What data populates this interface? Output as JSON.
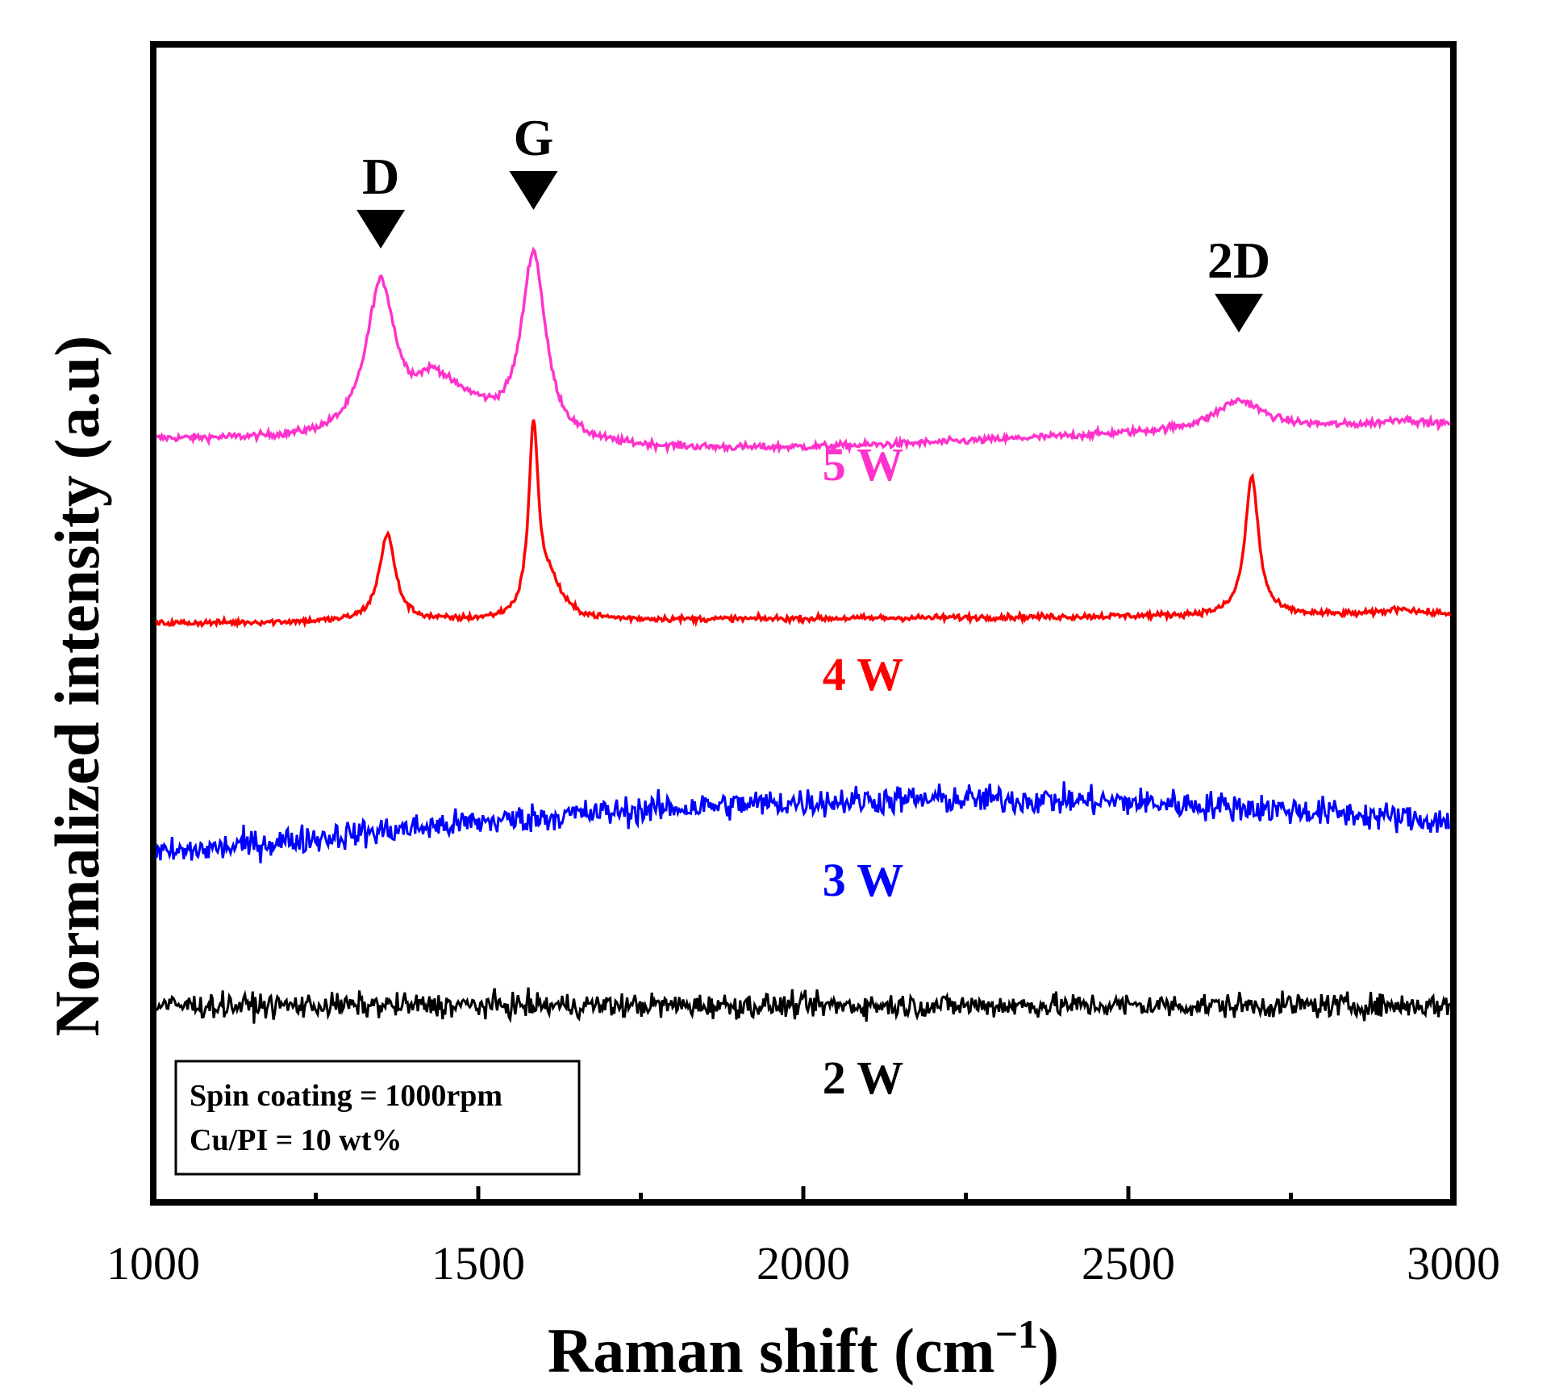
{
  "chart_data": {
    "type": "line",
    "title": "",
    "xlabel": "Raman shift (cm",
    "xlabel_sup": "−1",
    "xlabel_close": ")",
    "ylabel": "Normalized intensity (a.u)",
    "xlim": [
      1000,
      3000
    ],
    "ylim": [
      0,
      10
    ],
    "x_ticks": [
      1000,
      1500,
      2000,
      2500,
      3000
    ],
    "x_minor_ticks": [
      1250,
      1750,
      2250,
      2750
    ],
    "grid": false,
    "y_tick_labels_shown": false,
    "annotations": [
      {
        "text": "D",
        "x": 1350,
        "marker": "down-triangle"
      },
      {
        "text": "G",
        "x": 1585,
        "marker": "down-triangle"
      },
      {
        "text": "2D",
        "x": 2670,
        "marker": "down-triangle"
      }
    ],
    "note_box": {
      "lines": [
        "Spin coating = 1000rpm",
        "Cu/PI = 10 wt%"
      ],
      "placement": "bottom-left"
    },
    "series": [
      {
        "name": "5 W",
        "color": "#ff33cc",
        "baseline": 6.6,
        "slope": 0.1,
        "noise": 0.03,
        "peaks": [
          {
            "center": 1350,
            "height": 1.3,
            "width": 55
          },
          {
            "center": 1430,
            "height": 0.35,
            "width": 70
          },
          {
            "center": 1585,
            "height": 1.6,
            "width": 45
          },
          {
            "center": 1480,
            "height": 0.25,
            "width": 120
          },
          {
            "center": 2670,
            "height": 0.25,
            "width": 90
          },
          {
            "center": 2920,
            "height": 0.05,
            "width": 60
          }
        ]
      },
      {
        "name": "4 W",
        "color": "#ff0000",
        "baseline": 5.0,
        "slope": 0.12,
        "noise": 0.025,
        "peaks": [
          {
            "center": 1360,
            "height": 0.75,
            "width": 30
          },
          {
            "center": 1585,
            "height": 1.6,
            "width": 18
          },
          {
            "center": 1610,
            "height": 0.3,
            "width": 45
          },
          {
            "center": 2690,
            "height": 1.2,
            "width": 25
          },
          {
            "center": 2920,
            "height": 0.05,
            "width": 50
          }
        ]
      },
      {
        "name": "3 W",
        "color": "#0000ff",
        "baseline": 3.0,
        "slope": 0.48,
        "noise": 0.12,
        "peaks": []
      },
      {
        "name": "2 W",
        "color": "#000000",
        "baseline": 1.7,
        "slope": 0.0,
        "noise": 0.1,
        "peaks": []
      }
    ]
  }
}
